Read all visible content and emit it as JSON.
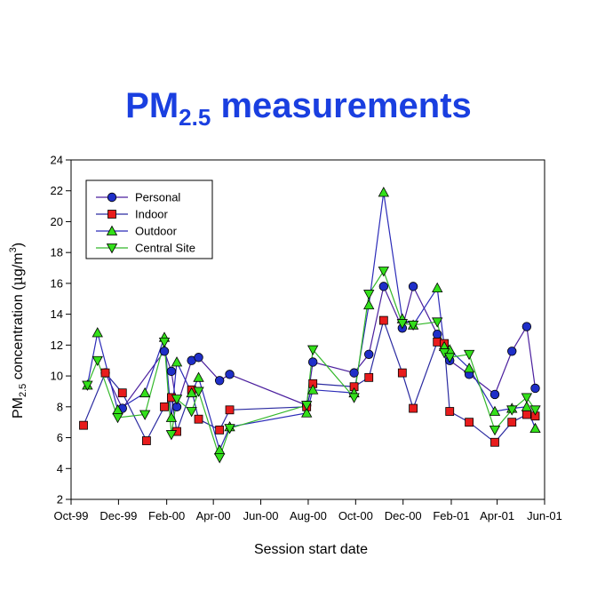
{
  "chart_data": {
    "type": "line",
    "title": {
      "main": "PM",
      "sub": "2.5",
      "rest": " measurements"
    },
    "xlabel": "Session start date",
    "ylabel": {
      "pre": "PM",
      "sub": "2.5",
      "mid": " concentration (",
      "mu": "µ",
      "unit": "g/m",
      "sup": "3",
      "post": ")"
    },
    "ylim": [
      2,
      24
    ],
    "yticks": [
      2,
      4,
      6,
      8,
      10,
      12,
      14,
      16,
      18,
      20,
      22,
      24
    ],
    "xlim": [
      "1999-10-01",
      "2001-06-01"
    ],
    "xticks": [
      {
        "date": "1999-10-01",
        "label": "Oct-99"
      },
      {
        "date": "1999-12-01",
        "label": "Dec-99"
      },
      {
        "date": "2000-02-01",
        "label": "Feb-00"
      },
      {
        "date": "2000-04-01",
        "label": "Apr-00"
      },
      {
        "date": "2000-06-01",
        "label": "Jun-00"
      },
      {
        "date": "2000-08-01",
        "label": "Aug-00"
      },
      {
        "date": "2000-10-01",
        "label": "Oct-00"
      },
      {
        "date": "2000-12-01",
        "label": "Dec-00"
      },
      {
        "date": "2001-02-01",
        "label": "Feb-01"
      },
      {
        "date": "2001-04-01",
        "label": "Apr-01"
      },
      {
        "date": "2001-06-01",
        "label": "Jun-01"
      }
    ],
    "grid": false,
    "legend_position": "top-left",
    "series": [
      {
        "name": "Personal",
        "marker": "circle",
        "fill": "#1f2fc8",
        "line": "#4b1f9e",
        "points": [
          [
            "1999-11-14",
            10.2
          ],
          [
            "1999-12-06",
            7.9
          ],
          [
            "2000-01-29",
            11.6
          ],
          [
            "2000-02-07",
            10.3
          ],
          [
            "2000-02-14",
            8.0
          ],
          [
            "2000-03-04",
            11.0
          ],
          [
            "2000-03-13",
            11.2
          ],
          [
            "2000-04-09",
            9.7
          ],
          [
            "2000-04-22",
            10.1
          ],
          [
            "2000-07-30",
            8.1
          ],
          [
            "2000-08-07",
            10.9
          ],
          [
            "2000-09-29",
            10.2
          ],
          [
            "2000-10-18",
            11.4
          ],
          [
            "2000-11-06",
            15.8
          ],
          [
            "2000-11-30",
            13.1
          ],
          [
            "2000-12-14",
            15.8
          ],
          [
            "2001-01-14",
            12.7
          ],
          [
            "2001-01-30",
            11.0
          ],
          [
            "2001-02-24",
            10.1
          ],
          [
            "2001-03-29",
            8.8
          ],
          [
            "2001-04-20",
            11.6
          ],
          [
            "2001-05-09",
            13.2
          ],
          [
            "2001-05-20",
            9.2
          ]
        ]
      },
      {
        "name": "Indoor",
        "marker": "square",
        "fill": "#e81c1c",
        "line": "#2a2aa0",
        "points": [
          [
            "1999-10-17",
            6.8
          ],
          [
            "1999-11-14",
            10.2
          ],
          [
            "1999-12-06",
            8.9
          ],
          [
            "2000-01-06",
            5.8
          ],
          [
            "2000-01-29",
            8.0
          ],
          [
            "2000-02-07",
            8.6
          ],
          [
            "2000-02-14",
            6.4
          ],
          [
            "2000-03-04",
            9.1
          ],
          [
            "2000-03-13",
            7.2
          ],
          [
            "2000-04-09",
            6.5
          ],
          [
            "2000-04-22",
            7.8
          ],
          [
            "2000-07-30",
            8.0
          ],
          [
            "2000-08-07",
            9.5
          ],
          [
            "2000-09-29",
            9.3
          ],
          [
            "2000-10-18",
            9.9
          ],
          [
            "2000-11-06",
            13.6
          ],
          [
            "2000-11-30",
            10.2
          ],
          [
            "2000-12-14",
            7.9
          ],
          [
            "2001-01-14",
            12.2
          ],
          [
            "2001-01-23",
            12.1
          ],
          [
            "2001-01-30",
            7.7
          ],
          [
            "2001-02-24",
            7.0
          ],
          [
            "2001-03-29",
            5.7
          ],
          [
            "2001-04-20",
            7.0
          ],
          [
            "2001-05-09",
            7.5
          ],
          [
            "2001-05-20",
            7.4
          ]
        ]
      },
      {
        "name": "Outdoor",
        "marker": "triangle-up",
        "fill": "#33e01a",
        "line": "#2b2bb8",
        "points": [
          [
            "1999-10-22",
            9.4
          ],
          [
            "1999-11-04",
            12.8
          ],
          [
            "1999-11-30",
            7.8
          ],
          [
            "2000-01-04",
            8.9
          ],
          [
            "2000-01-29",
            12.5
          ],
          [
            "2000-02-07",
            7.3
          ],
          [
            "2000-02-14",
            10.9
          ],
          [
            "2000-03-04",
            8.9
          ],
          [
            "2000-03-13",
            9.9
          ],
          [
            "2000-04-09",
            5.2
          ],
          [
            "2000-04-22",
            6.7
          ],
          [
            "2000-07-30",
            7.6
          ],
          [
            "2000-08-07",
            9.1
          ],
          [
            "2000-09-29",
            8.9
          ],
          [
            "2000-10-18",
            14.6
          ],
          [
            "2000-11-06",
            21.9
          ],
          [
            "2000-11-30",
            13.7
          ],
          [
            "2000-12-14",
            13.3
          ],
          [
            "2001-01-14",
            15.7
          ],
          [
            "2001-01-23",
            11.9
          ],
          [
            "2001-01-30",
            11.7
          ],
          [
            "2001-02-24",
            10.5
          ],
          [
            "2001-03-29",
            7.7
          ],
          [
            "2001-04-20",
            7.9
          ],
          [
            "2001-05-09",
            8.0
          ],
          [
            "2001-05-20",
            6.6
          ]
        ]
      },
      {
        "name": "Central Site",
        "marker": "triangle-down",
        "fill": "#33e01a",
        "line": "#33b82a",
        "points": [
          [
            "1999-10-22",
            9.4
          ],
          [
            "1999-11-04",
            11.0
          ],
          [
            "1999-11-30",
            7.3
          ],
          [
            "2000-01-04",
            7.5
          ],
          [
            "2000-01-29",
            12.2
          ],
          [
            "2000-02-07",
            6.2
          ],
          [
            "2000-02-14",
            8.5
          ],
          [
            "2000-03-04",
            7.7
          ],
          [
            "2000-03-13",
            9.0
          ],
          [
            "2000-04-09",
            4.7
          ],
          [
            "2000-04-22",
            6.6
          ],
          [
            "2000-07-30",
            8.1
          ],
          [
            "2000-08-07",
            11.7
          ],
          [
            "2000-09-29",
            8.6
          ],
          [
            "2000-10-18",
            15.3
          ],
          [
            "2000-11-06",
            16.8
          ],
          [
            "2000-11-30",
            13.4
          ],
          [
            "2000-12-14",
            13.3
          ],
          [
            "2001-01-14",
            13.5
          ],
          [
            "2001-01-23",
            11.5
          ],
          [
            "2001-01-30",
            11.2
          ],
          [
            "2001-02-24",
            11.4
          ],
          [
            "2001-03-29",
            6.5
          ],
          [
            "2001-04-20",
            7.8
          ],
          [
            "2001-05-09",
            8.6
          ],
          [
            "2001-05-20",
            7.8
          ]
        ]
      }
    ]
  }
}
